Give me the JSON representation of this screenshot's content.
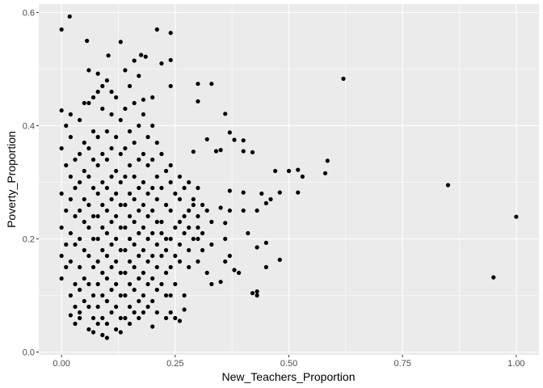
{
  "chart_data": {
    "type": "scatter",
    "title": "",
    "xlabel": "New_Teachers_Proportion",
    "ylabel": "Poverty_Proportion",
    "xlim": [
      -0.05,
      1.05
    ],
    "ylim": [
      -0.005,
      0.615
    ],
    "x_ticks": [
      0.0,
      0.25,
      0.5,
      0.75,
      1.0
    ],
    "x_tick_labels": [
      "0.00",
      "0.25",
      "0.50",
      "0.75",
      "1.00"
    ],
    "y_ticks": [
      0.0,
      0.2,
      0.4,
      0.6
    ],
    "y_tick_labels": [
      "0.0",
      "0.2",
      "0.4",
      "0.6"
    ],
    "grid": true,
    "legend": "none",
    "colors": {
      "panel": "#ebebeb",
      "grid_major": "#ffffff",
      "point": "#000000",
      "tick_text": "#4d4d4d",
      "tick_mark": "#333333"
    },
    "points": [
      [
        0.0,
        0.57
      ],
      [
        0.018,
        0.593
      ],
      [
        0.056,
        0.55
      ],
      [
        0.13,
        0.548
      ],
      [
        0.21,
        0.57
      ],
      [
        0.24,
        0.564
      ],
      [
        0.103,
        0.524
      ],
      [
        0.175,
        0.525
      ],
      [
        0.185,
        0.522
      ],
      [
        0.16,
        0.515
      ],
      [
        0.22,
        0.51
      ],
      [
        0.24,
        0.516
      ],
      [
        0.06,
        0.498
      ],
      [
        0.08,
        0.492
      ],
      [
        0.14,
        0.498
      ],
      [
        0.17,
        0.488
      ],
      [
        0.24,
        0.47
      ],
      [
        0.3,
        0.474
      ],
      [
        0.33,
        0.474
      ],
      [
        0.62,
        0.483
      ],
      [
        0.3,
        0.443
      ],
      [
        0.18,
        0.446
      ],
      [
        0.36,
        0.421
      ],
      [
        0.0,
        0.427
      ],
      [
        0.02,
        0.42
      ],
      [
        0.05,
        0.44
      ],
      [
        0.32,
        0.376
      ],
      [
        0.37,
        0.388
      ],
      [
        0.29,
        0.354
      ],
      [
        0.34,
        0.355
      ],
      [
        0.35,
        0.357
      ],
      [
        0.38,
        0.375
      ],
      [
        0.4,
        0.374
      ],
      [
        0.4,
        0.355
      ],
      [
        0.42,
        0.353
      ],
      [
        0.5,
        0.32
      ],
      [
        0.52,
        0.322
      ],
      [
        0.53,
        0.31
      ],
      [
        0.47,
        0.32
      ],
      [
        0.585,
        0.338
      ],
      [
        0.58,
        0.316
      ],
      [
        0.52,
        0.282
      ],
      [
        0.48,
        0.282
      ],
      [
        0.44,
        0.28
      ],
      [
        0.45,
        0.263
      ],
      [
        0.46,
        0.27
      ],
      [
        0.43,
        0.25
      ],
      [
        0.4,
        0.282
      ],
      [
        0.37,
        0.285
      ],
      [
        0.4,
        0.25
      ],
      [
        0.37,
        0.25
      ],
      [
        0.35,
        0.255
      ],
      [
        0.36,
        0.228
      ],
      [
        0.85,
        0.295
      ],
      [
        1.0,
        0.239
      ],
      [
        0.95,
        0.132
      ],
      [
        0.45,
        0.193
      ],
      [
        0.45,
        0.15
      ],
      [
        0.41,
        0.21
      ],
      [
        0.43,
        0.185
      ],
      [
        0.48,
        0.163
      ],
      [
        0.43,
        0.1
      ],
      [
        0.42,
        0.104
      ],
      [
        0.43,
        0.107
      ],
      [
        0.36,
        0.2
      ],
      [
        0.37,
        0.17
      ],
      [
        0.36,
        0.16
      ],
      [
        0.38,
        0.145
      ],
      [
        0.39,
        0.14
      ],
      [
        0.35,
        0.124
      ],
      [
        0.32,
        0.14
      ],
      [
        0.33,
        0.12
      ],
      [
        0.3,
        0.2
      ],
      [
        0.28,
        0.18
      ],
      [
        0.26,
        0.19
      ],
      [
        0.27,
        0.1
      ],
      [
        0.27,
        0.075
      ],
      [
        0.24,
        0.07
      ],
      [
        0.23,
        0.06
      ],
      [
        0.26,
        0.055
      ],
      [
        0.25,
        0.06
      ],
      [
        0.2,
        0.045
      ],
      [
        0.24,
        0.3
      ],
      [
        0.26,
        0.27
      ],
      [
        0.27,
        0.24
      ],
      [
        0.22,
        0.21
      ],
      [
        0.23,
        0.18
      ],
      [
        0.28,
        0.22
      ],
      [
        0.29,
        0.26
      ],
      [
        0.3,
        0.24
      ],
      [
        0.31,
        0.21
      ],
      [
        0.33,
        0.23
      ],
      [
        0.32,
        0.25
      ],
      [
        0.33,
        0.19
      ],
      [
        0.01,
        0.4
      ],
      [
        0.0,
        0.36
      ],
      [
        0.01,
        0.33
      ],
      [
        0.0,
        0.28
      ],
      [
        0.01,
        0.25
      ],
      [
        0.0,
        0.22
      ],
      [
        0.01,
        0.19
      ],
      [
        0.0,
        0.17
      ],
      [
        0.01,
        0.15
      ],
      [
        0.0,
        0.13
      ],
      [
        0.02,
        0.38
      ],
      [
        0.03,
        0.34
      ],
      [
        0.02,
        0.31
      ],
      [
        0.03,
        0.29
      ],
      [
        0.02,
        0.27
      ],
      [
        0.03,
        0.24
      ],
      [
        0.02,
        0.21
      ],
      [
        0.03,
        0.19
      ],
      [
        0.02,
        0.16
      ],
      [
        0.03,
        0.12
      ],
      [
        0.02,
        0.1
      ],
      [
        0.03,
        0.08
      ],
      [
        0.04,
        0.06
      ],
      [
        0.02,
        0.065
      ],
      [
        0.03,
        0.05
      ],
      [
        0.04,
        0.41
      ],
      [
        0.05,
        0.37
      ],
      [
        0.04,
        0.35
      ],
      [
        0.05,
        0.32
      ],
      [
        0.04,
        0.3
      ],
      [
        0.05,
        0.27
      ],
      [
        0.04,
        0.25
      ],
      [
        0.05,
        0.23
      ],
      [
        0.04,
        0.2
      ],
      [
        0.05,
        0.18
      ],
      [
        0.04,
        0.15
      ],
      [
        0.05,
        0.13
      ],
      [
        0.04,
        0.11
      ],
      [
        0.05,
        0.09
      ],
      [
        0.04,
        0.07
      ],
      [
        0.06,
        0.44
      ],
      [
        0.07,
        0.39
      ],
      [
        0.06,
        0.36
      ],
      [
        0.07,
        0.34
      ],
      [
        0.06,
        0.31
      ],
      [
        0.07,
        0.29
      ],
      [
        0.06,
        0.26
      ],
      [
        0.07,
        0.24
      ],
      [
        0.06,
        0.22
      ],
      [
        0.07,
        0.2
      ],
      [
        0.06,
        0.17
      ],
      [
        0.07,
        0.15
      ],
      [
        0.06,
        0.12
      ],
      [
        0.07,
        0.1
      ],
      [
        0.06,
        0.08
      ],
      [
        0.07,
        0.06
      ],
      [
        0.06,
        0.04
      ],
      [
        0.07,
        0.035
      ],
      [
        0.08,
        0.46
      ],
      [
        0.09,
        0.43
      ],
      [
        0.08,
        0.38
      ],
      [
        0.09,
        0.35
      ],
      [
        0.08,
        0.33
      ],
      [
        0.09,
        0.3
      ],
      [
        0.08,
        0.28
      ],
      [
        0.09,
        0.26
      ],
      [
        0.08,
        0.24
      ],
      [
        0.09,
        0.22
      ],
      [
        0.08,
        0.2
      ],
      [
        0.09,
        0.18
      ],
      [
        0.08,
        0.16
      ],
      [
        0.09,
        0.14
      ],
      [
        0.08,
        0.12
      ],
      [
        0.09,
        0.1
      ],
      [
        0.08,
        0.08
      ],
      [
        0.09,
        0.06
      ],
      [
        0.08,
        0.05
      ],
      [
        0.09,
        0.03
      ],
      [
        0.1,
        0.48
      ],
      [
        0.11,
        0.42
      ],
      [
        0.1,
        0.39
      ],
      [
        0.11,
        0.36
      ],
      [
        0.1,
        0.34
      ],
      [
        0.11,
        0.31
      ],
      [
        0.1,
        0.29
      ],
      [
        0.11,
        0.27
      ],
      [
        0.1,
        0.25
      ],
      [
        0.11,
        0.23
      ],
      [
        0.1,
        0.21
      ],
      [
        0.11,
        0.19
      ],
      [
        0.1,
        0.17
      ],
      [
        0.11,
        0.15
      ],
      [
        0.1,
        0.13
      ],
      [
        0.11,
        0.11
      ],
      [
        0.1,
        0.09
      ],
      [
        0.11,
        0.07
      ],
      [
        0.1,
        0.05
      ],
      [
        0.1,
        0.025
      ],
      [
        0.12,
        0.45
      ],
      [
        0.13,
        0.41
      ],
      [
        0.12,
        0.38
      ],
      [
        0.13,
        0.35
      ],
      [
        0.12,
        0.32
      ],
      [
        0.13,
        0.3
      ],
      [
        0.12,
        0.28
      ],
      [
        0.13,
        0.26
      ],
      [
        0.12,
        0.24
      ],
      [
        0.13,
        0.22
      ],
      [
        0.12,
        0.2
      ],
      [
        0.13,
        0.18
      ],
      [
        0.12,
        0.16
      ],
      [
        0.13,
        0.14
      ],
      [
        0.12,
        0.12
      ],
      [
        0.13,
        0.1
      ],
      [
        0.12,
        0.08
      ],
      [
        0.13,
        0.06
      ],
      [
        0.12,
        0.04
      ],
      [
        0.13,
        0.035
      ],
      [
        0.14,
        0.43
      ],
      [
        0.15,
        0.39
      ],
      [
        0.14,
        0.36
      ],
      [
        0.15,
        0.33
      ],
      [
        0.14,
        0.31
      ],
      [
        0.15,
        0.28
      ],
      [
        0.14,
        0.26
      ],
      [
        0.15,
        0.24
      ],
      [
        0.14,
        0.22
      ],
      [
        0.15,
        0.2
      ],
      [
        0.14,
        0.18
      ],
      [
        0.15,
        0.16
      ],
      [
        0.14,
        0.14
      ],
      [
        0.15,
        0.12
      ],
      [
        0.14,
        0.1
      ],
      [
        0.15,
        0.08
      ],
      [
        0.14,
        0.06
      ],
      [
        0.15,
        0.05
      ],
      [
        0.16,
        0.44
      ],
      [
        0.17,
        0.4
      ],
      [
        0.16,
        0.37
      ],
      [
        0.17,
        0.34
      ],
      [
        0.16,
        0.31
      ],
      [
        0.17,
        0.29
      ],
      [
        0.16,
        0.27
      ],
      [
        0.17,
        0.25
      ],
      [
        0.16,
        0.23
      ],
      [
        0.17,
        0.21
      ],
      [
        0.16,
        0.19
      ],
      [
        0.17,
        0.17
      ],
      [
        0.16,
        0.15
      ],
      [
        0.17,
        0.13
      ],
      [
        0.16,
        0.11
      ],
      [
        0.17,
        0.09
      ],
      [
        0.16,
        0.07
      ],
      [
        0.17,
        0.06
      ],
      [
        0.18,
        0.42
      ],
      [
        0.19,
        0.38
      ],
      [
        0.18,
        0.35
      ],
      [
        0.19,
        0.33
      ],
      [
        0.18,
        0.3
      ],
      [
        0.19,
        0.28
      ],
      [
        0.18,
        0.26
      ],
      [
        0.19,
        0.24
      ],
      [
        0.18,
        0.22
      ],
      [
        0.19,
        0.2
      ],
      [
        0.18,
        0.18
      ],
      [
        0.19,
        0.16
      ],
      [
        0.18,
        0.14
      ],
      [
        0.19,
        0.12
      ],
      [
        0.18,
        0.1
      ],
      [
        0.19,
        0.08
      ],
      [
        0.18,
        0.07
      ],
      [
        0.2,
        0.4
      ],
      [
        0.21,
        0.37
      ],
      [
        0.2,
        0.34
      ],
      [
        0.21,
        0.31
      ],
      [
        0.2,
        0.29
      ],
      [
        0.21,
        0.27
      ],
      [
        0.2,
        0.25
      ],
      [
        0.21,
        0.23
      ],
      [
        0.2,
        0.21
      ],
      [
        0.21,
        0.19
      ],
      [
        0.2,
        0.17
      ],
      [
        0.21,
        0.15
      ],
      [
        0.2,
        0.13
      ],
      [
        0.21,
        0.11
      ],
      [
        0.2,
        0.09
      ],
      [
        0.21,
        0.07
      ],
      [
        0.22,
        0.35
      ],
      [
        0.23,
        0.32
      ],
      [
        0.22,
        0.29
      ],
      [
        0.23,
        0.26
      ],
      [
        0.22,
        0.23
      ],
      [
        0.23,
        0.2
      ],
      [
        0.22,
        0.17
      ],
      [
        0.23,
        0.14
      ],
      [
        0.22,
        0.12
      ],
      [
        0.23,
        0.1
      ],
      [
        0.24,
        0.33
      ],
      [
        0.25,
        0.28
      ],
      [
        0.24,
        0.25
      ],
      [
        0.25,
        0.22
      ],
      [
        0.24,
        0.2
      ],
      [
        0.25,
        0.17
      ],
      [
        0.24,
        0.15
      ],
      [
        0.25,
        0.12
      ],
      [
        0.24,
        0.1
      ],
      [
        0.26,
        0.31
      ],
      [
        0.27,
        0.29
      ],
      [
        0.26,
        0.23
      ],
      [
        0.27,
        0.21
      ],
      [
        0.26,
        0.16
      ],
      [
        0.28,
        0.3
      ],
      [
        0.29,
        0.27
      ],
      [
        0.28,
        0.25
      ],
      [
        0.29,
        0.2
      ],
      [
        0.28,
        0.15
      ],
      [
        0.3,
        0.29
      ],
      [
        0.31,
        0.26
      ],
      [
        0.3,
        0.22
      ],
      [
        0.31,
        0.18
      ],
      [
        0.3,
        0.16
      ],
      [
        0.2,
        0.45
      ],
      [
        0.15,
        0.47
      ],
      [
        0.11,
        0.46
      ],
      [
        0.09,
        0.47
      ],
      [
        0.07,
        0.45
      ]
    ]
  }
}
